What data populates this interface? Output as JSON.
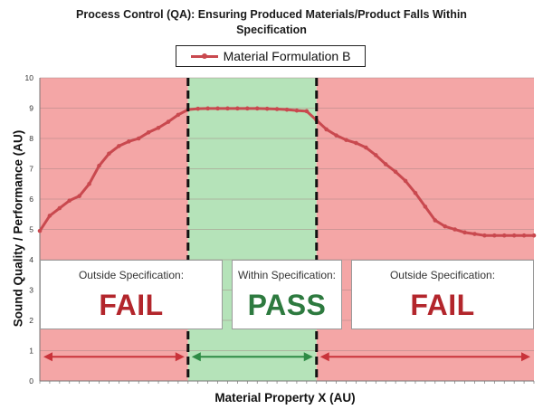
{
  "chart_data": {
    "type": "line",
    "title_line1": "Process Control (QA):  Ensuring Produced Materials/Product Falls Within",
    "title_line2": "Specification",
    "xlabel": "Material Property X (AU)",
    "ylabel": "Sound Quality / Performance (AU)",
    "ylim": [
      0,
      10
    ],
    "yticks": [
      "0",
      "1",
      "2",
      "3",
      "4",
      "5",
      "6",
      "7",
      "8",
      "9",
      "10"
    ],
    "grid": true,
    "legend_position": "top",
    "series": [
      {
        "name": "Material Formulation B",
        "color": "#c9494f",
        "x": [
          0,
          1,
          2,
          3,
          4,
          5,
          6,
          7,
          8,
          9,
          10,
          11,
          12,
          13,
          14,
          15,
          16,
          17,
          18,
          19,
          20,
          21,
          22,
          23,
          24,
          25,
          26,
          27,
          28,
          29,
          30,
          31,
          32,
          33,
          34,
          35,
          36,
          37,
          38,
          39,
          40,
          41,
          42,
          43,
          44,
          45,
          46,
          47,
          48,
          49,
          50
        ],
        "values": [
          4.95,
          5.45,
          5.7,
          5.95,
          6.1,
          6.5,
          7.1,
          7.5,
          7.75,
          7.9,
          8.0,
          8.2,
          8.35,
          8.55,
          8.78,
          8.95,
          8.98,
          8.99,
          8.99,
          8.99,
          8.99,
          8.99,
          8.99,
          8.98,
          8.97,
          8.95,
          8.92,
          8.9,
          8.6,
          8.3,
          8.1,
          7.95,
          7.85,
          7.7,
          7.45,
          7.15,
          6.9,
          6.6,
          6.2,
          5.75,
          5.3,
          5.1,
          5.0,
          4.9,
          4.85,
          4.8,
          4.8,
          4.8,
          4.8,
          4.8,
          4.8
        ]
      }
    ],
    "spec_limits": {
      "lower_x": 15,
      "upper_x": 28
    },
    "zones": [
      {
        "key": "left",
        "head": "Outside Specification:",
        "verdict": "FAIL"
      },
      {
        "key": "mid",
        "head": "Within Specification:",
        "verdict": "PASS"
      },
      {
        "key": "right",
        "head": "Outside Specification:",
        "verdict": "FAIL"
      }
    ],
    "colors": {
      "fail_zone": "#f4a6a6",
      "pass_zone": "#b5e3b9",
      "line": "#c9494f",
      "fail_arrow": "#c9333a",
      "pass_arrow": "#2e8b45"
    }
  }
}
